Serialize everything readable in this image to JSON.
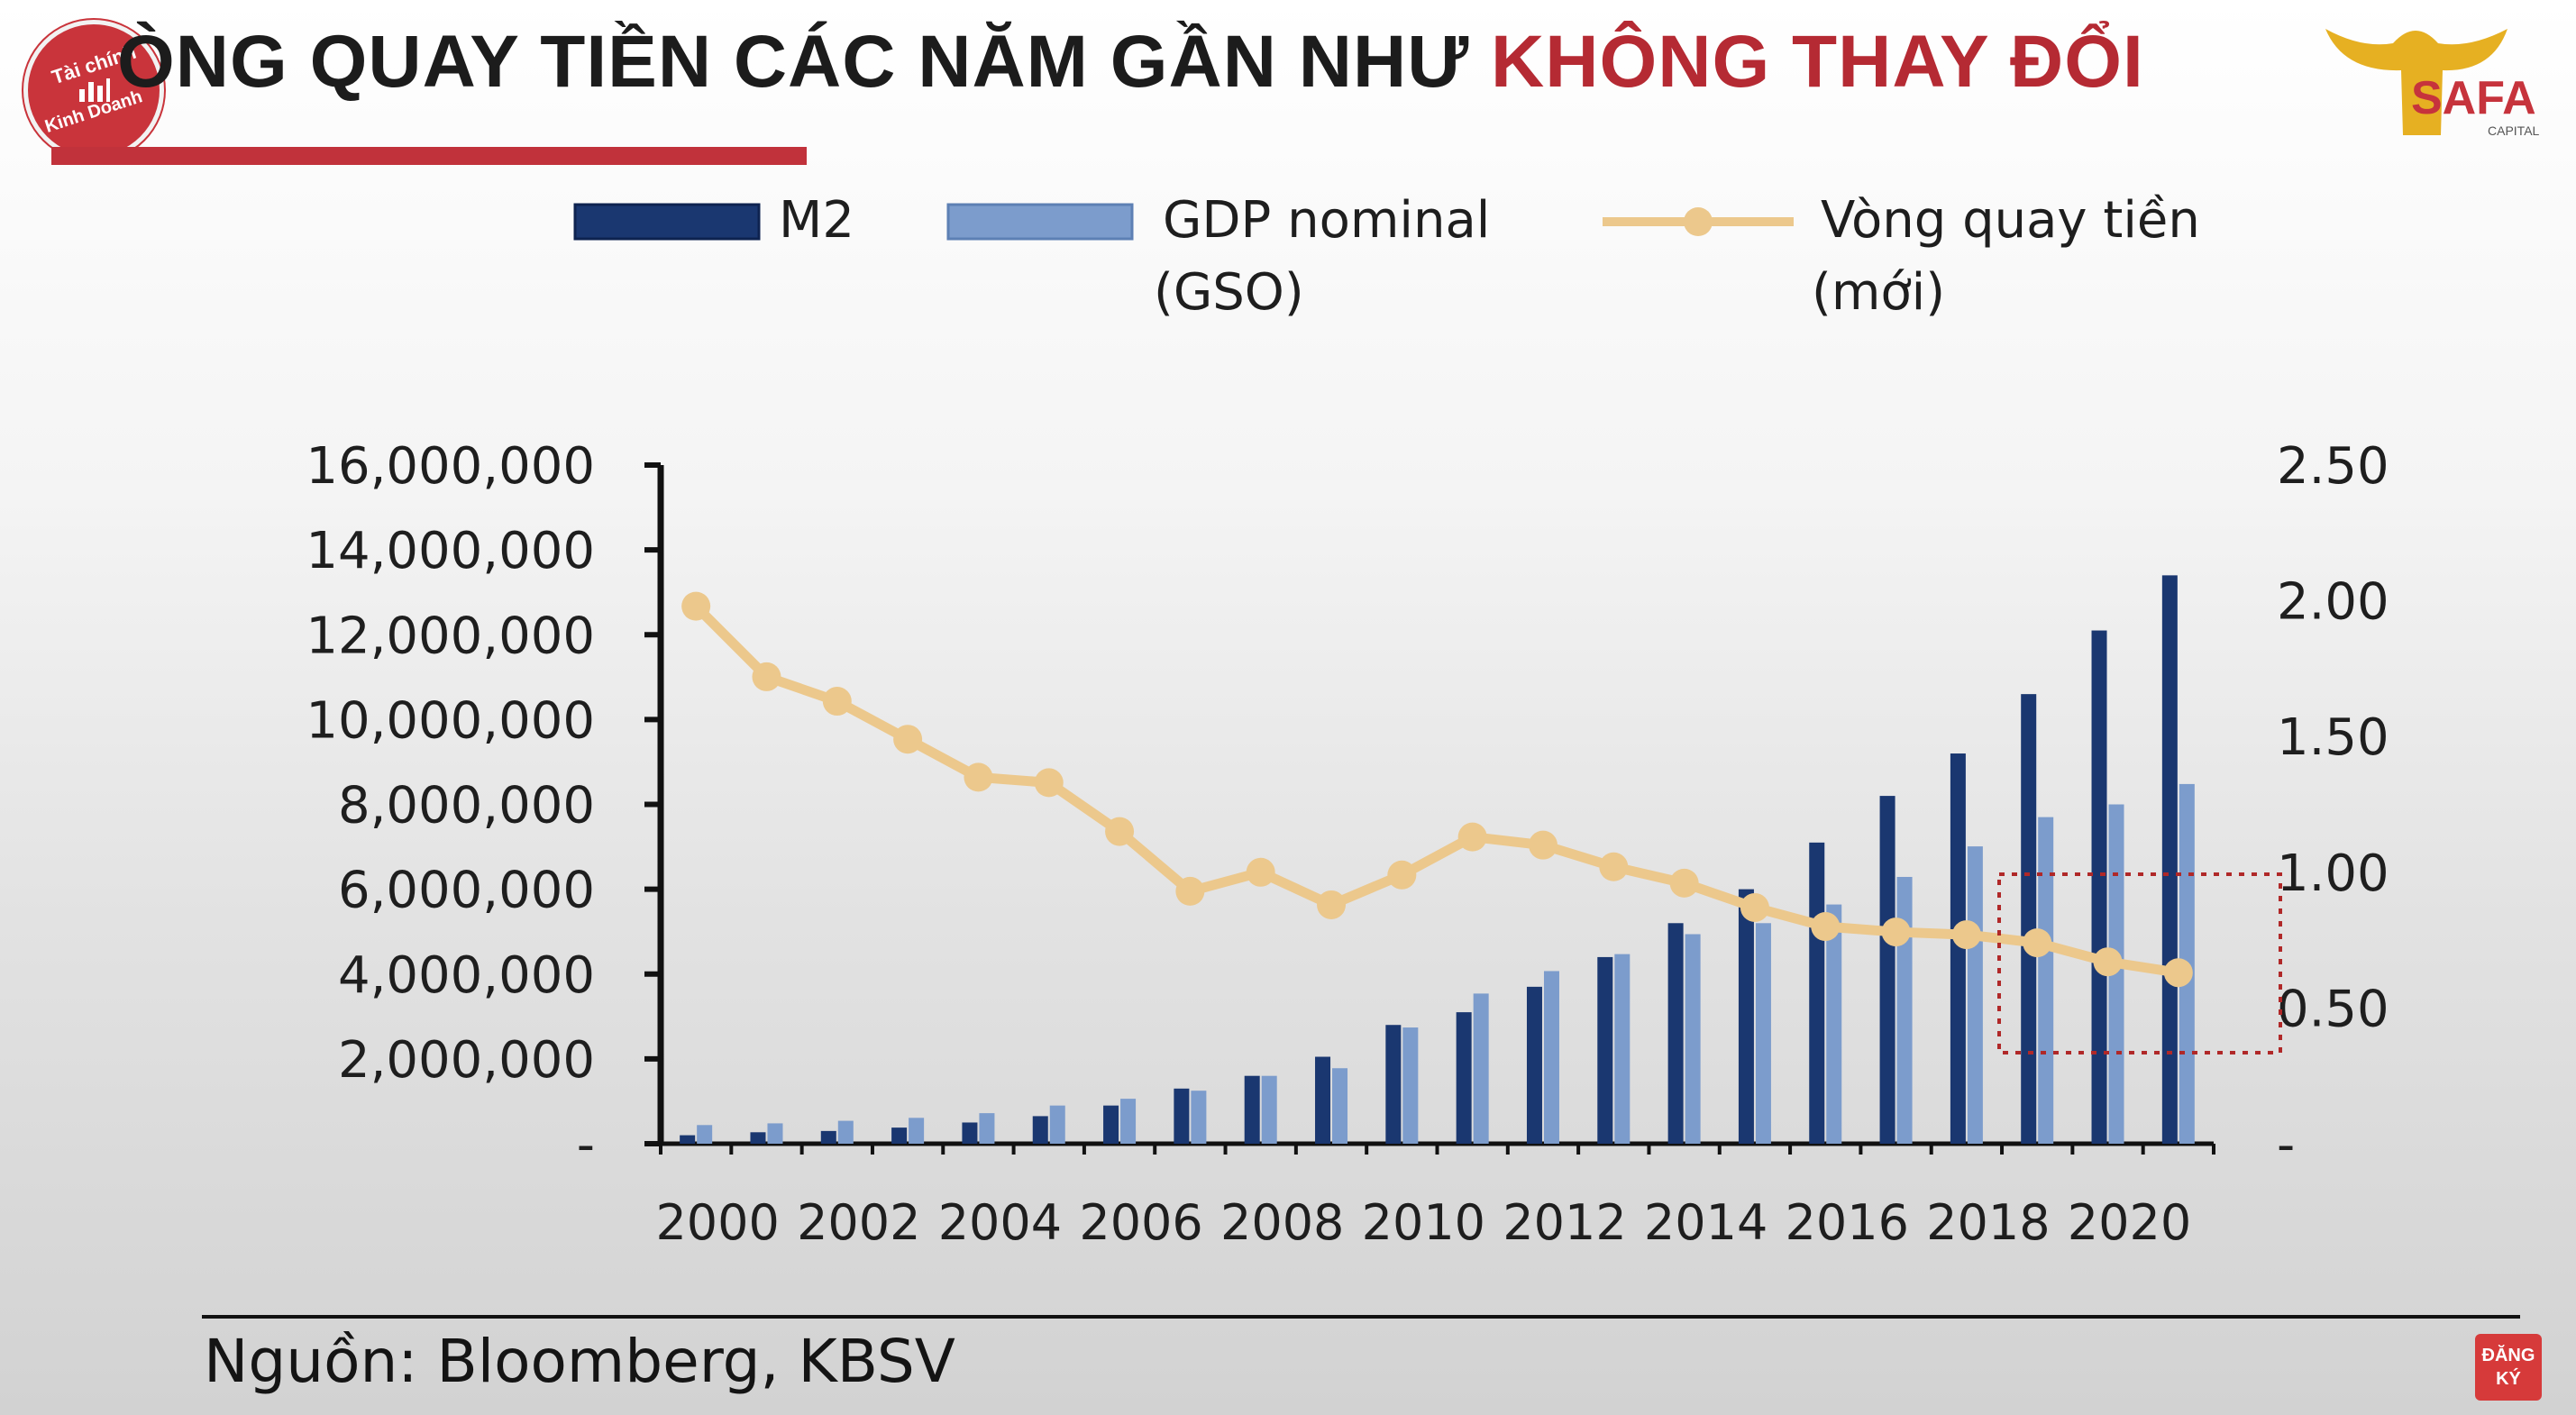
{
  "header": {
    "title_dark": "ÒNG QUAY TIỀN CÁC NĂM GẦN NHƯ",
    "title_red": "KHÔNG THAY ĐỔI",
    "logo_left_line1": "Tài chính",
    "logo_left_line2": "Kinh Doanh",
    "logo_right_text": "SAFA",
    "logo_right_sub": "CAPITAL"
  },
  "footer": {
    "source": "Nguồn: Bloomberg, KBSV",
    "subscribe_line1": "ĐĂNG",
    "subscribe_line2": "KÝ"
  },
  "colors": {
    "m2": "#1a3770",
    "gdp": "#7c9ccc",
    "velocity": "#ecc88c",
    "title_red": "#b52a33",
    "highlight_box": "#b02828"
  },
  "chart_data": {
    "type": "bar",
    "legend": [
      "M2",
      "GDP nominal (GSO)",
      "Vòng quay tiền (mới)"
    ],
    "legend_labels": {
      "m2": "M2",
      "gdp_line1": "GDP nominal",
      "gdp_line2": "(GSO)",
      "vel_line1": "Vòng quay tiền",
      "vel_line2": "(mới)"
    },
    "legend_position": "top",
    "years": [
      2000,
      2001,
      2002,
      2003,
      2004,
      2005,
      2006,
      2007,
      2008,
      2009,
      2010,
      2011,
      2012,
      2013,
      2014,
      2015,
      2016,
      2017,
      2018,
      2019,
      2020,
      2021
    ],
    "x_tick_labels": [
      "2000",
      "2002",
      "2004",
      "2006",
      "2008",
      "2010",
      "2012",
      "2014",
      "2016",
      "2018",
      "2020"
    ],
    "y_left_ticks": [
      "-",
      "2,000,000",
      "4,000,000",
      "6,000,000",
      "8,000,000",
      "10,000,000",
      "12,000,000",
      "14,000,000",
      "16,000,000"
    ],
    "y_right_ticks": [
      "-",
      "0.50",
      "1.00",
      "1.50",
      "2.00",
      "2.50"
    ],
    "y_left_lim": [
      0,
      16000000
    ],
    "y_right_lim": [
      0,
      2.5
    ],
    "series": [
      {
        "name": "M2",
        "kind": "bar",
        "axis": "left",
        "values": [
          200000,
          270000,
          300000,
          380000,
          500000,
          650000,
          900000,
          1300000,
          1600000,
          2050000,
          2800000,
          3100000,
          3700000,
          4400000,
          5200000,
          6000000,
          7100000,
          8200000,
          9200000,
          10600000,
          12100000,
          13400000
        ]
      },
      {
        "name": "GDP nominal (GSO)",
        "kind": "bar",
        "axis": "left",
        "values": [
          440000,
          480000,
          540000,
          610000,
          720000,
          900000,
          1060000,
          1250000,
          1600000,
          1780000,
          2740000,
          3540000,
          4070000,
          4470000,
          4940000,
          5200000,
          5640000,
          6290000,
          7010000,
          7700000,
          8000000,
          8480000
        ]
      },
      {
        "name": "Vòng quay tiền (mới)",
        "kind": "line",
        "axis": "right",
        "values": [
          1.98,
          1.72,
          1.63,
          1.49,
          1.35,
          1.33,
          1.15,
          0.93,
          1.0,
          0.88,
          0.99,
          1.13,
          1.1,
          1.02,
          0.96,
          0.87,
          0.8,
          0.78,
          0.77,
          0.74,
          0.67,
          0.63
        ]
      }
    ],
    "annotation": "dotted box highlighting 2019-2021"
  }
}
